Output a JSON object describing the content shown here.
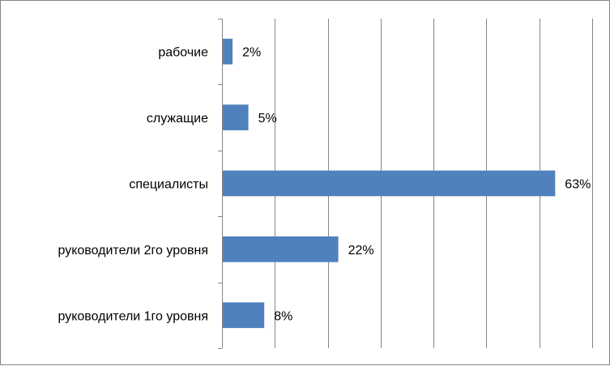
{
  "chart_data": {
    "type": "bar",
    "orientation": "horizontal",
    "categories": [
      "рабочие",
      "служащие",
      "специалисты",
      "руководители 2го уровня",
      "руководители 1го уровня"
    ],
    "values": [
      2,
      5,
      63,
      22,
      8
    ],
    "value_labels": [
      "2%",
      "5%",
      "63%",
      "22%",
      "8%"
    ],
    "unit": "%",
    "xlim": [
      0,
      70
    ],
    "major_step": 10,
    "vertical_gridlines": true,
    "legend": "none",
    "bar_color": "#4F81BD",
    "grid_color": "#868686"
  }
}
